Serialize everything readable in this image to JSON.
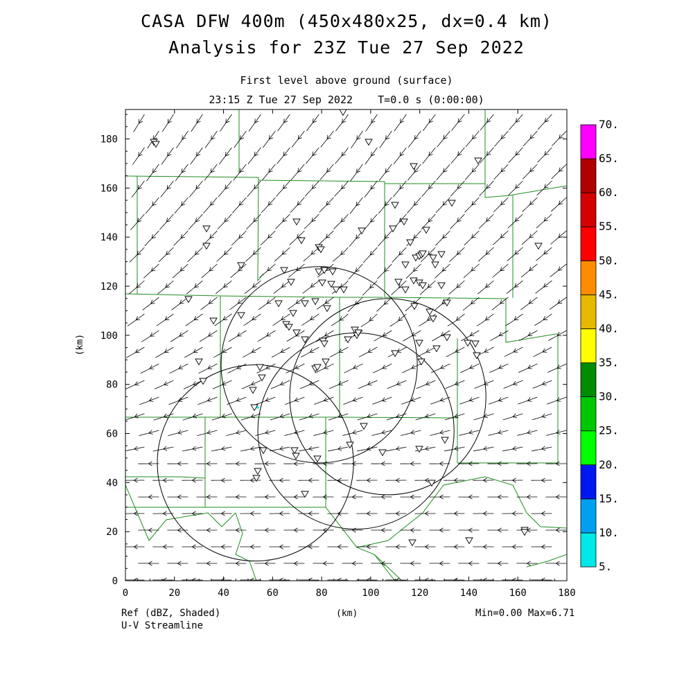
{
  "header": {
    "title_line1": "CASA DFW 400m (450x480x25, dx=0.4 km)",
    "title_line2": "Analysis for 23Z Tue 27 Sep 2022",
    "subtitle_line1": "First level above ground (surface)",
    "subtitle_line2": "23:15 Z Tue 27 Sep 2022    T=0.0 s (0:00:00)"
  },
  "axes": {
    "xlabel": "(km)",
    "ylabel": "(km)",
    "x_range": [
      0,
      180
    ],
    "y_range": [
      0,
      192
    ],
    "x_ticks": [
      "0",
      "20",
      "40",
      "60",
      "80",
      "100",
      "120",
      "140",
      "160",
      "180"
    ],
    "y_ticks": [
      "0",
      "20",
      "40",
      "60",
      "80",
      "100",
      "120",
      "140",
      "160",
      "180"
    ]
  },
  "colorbar": {
    "labels": [
      "5.",
      "10.",
      "15.",
      "20.",
      "25.",
      "30.",
      "35.",
      "40.",
      "45.",
      "50.",
      "55.",
      "60.",
      "65.",
      "70."
    ],
    "colors": [
      "#00e8e8",
      "#00a0f0",
      "#0018f0",
      "#00ff00",
      "#00c800",
      "#008c00",
      "#ffff00",
      "#e6b800",
      "#ff8c00",
      "#ff0000",
      "#d40000",
      "#b00000",
      "#ff00ff"
    ]
  },
  "footer": {
    "field_label": "Ref (dBZ, Shaded)",
    "vector_label": "U-V Streamline",
    "xlabel": "(km)",
    "minmax": "Min=0.00 Max=6.71"
  },
  "map": {
    "radar_rings": [
      {
        "cx": 107,
        "cy": 75,
        "r": 40
      },
      {
        "cx": 79,
        "cy": 88,
        "r": 40
      },
      {
        "cx": 94,
        "cy": 61,
        "r": 40
      },
      {
        "cx": 53,
        "cy": 48,
        "r": 40
      }
    ],
    "colors": {
      "county": "#1e8c1e",
      "streamline": "#000000",
      "ring": "#000000",
      "echo": "#00e8e8"
    }
  }
}
